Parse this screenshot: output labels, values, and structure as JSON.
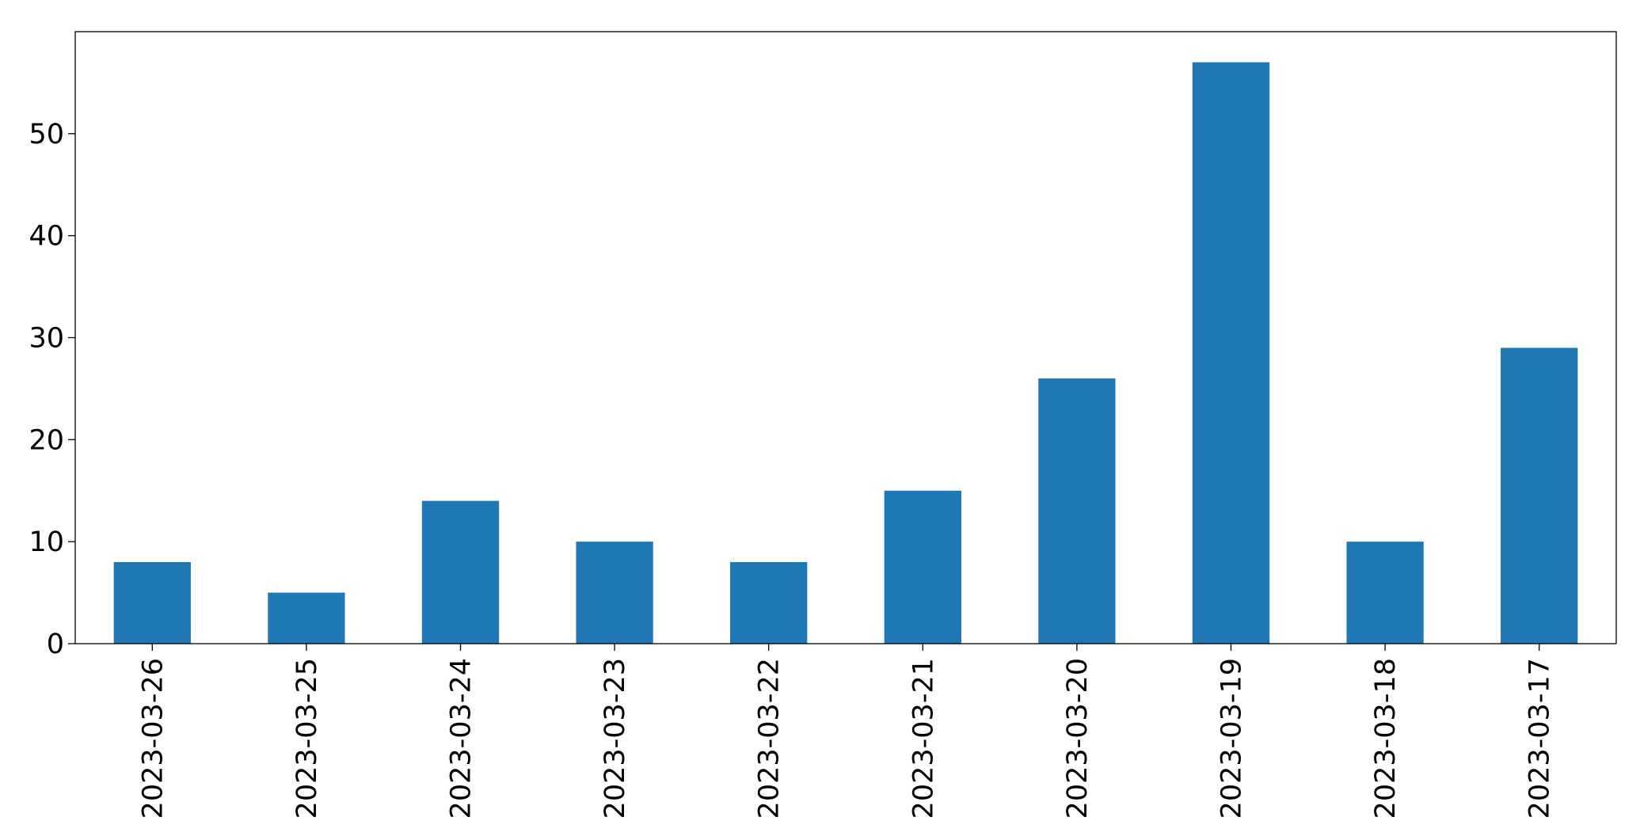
{
  "chart_data": {
    "type": "bar",
    "title": "",
    "xlabel": "",
    "ylabel": "",
    "categories": [
      "2023-03-26",
      "2023-03-25",
      "2023-03-24",
      "2023-03-23",
      "2023-03-22",
      "2023-03-21",
      "2023-03-20",
      "2023-03-19",
      "2023-03-18",
      "2023-03-17"
    ],
    "values": [
      8,
      5,
      14,
      10,
      8,
      15,
      26,
      57,
      10,
      29
    ],
    "ylim": [
      0,
      60
    ],
    "yticks": [
      0,
      10,
      20,
      30,
      40,
      50
    ],
    "grid": false,
    "bar_color": "#1f77b4"
  }
}
